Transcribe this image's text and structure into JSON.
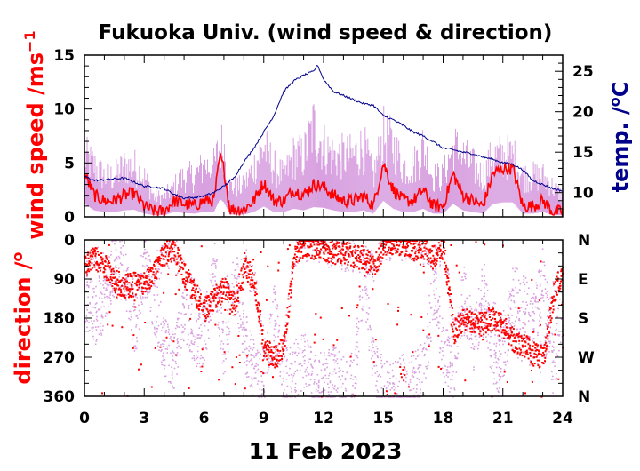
{
  "title": "Fukuoka Univ. (wind speed & direction)",
  "date": "11 Feb 2023",
  "colors": {
    "wind_mean": "#ff0000",
    "wind_gust": "#d8a0e0",
    "temperature": "#00008b",
    "axis": "#000000"
  },
  "chart_data": [
    {
      "type": "line",
      "panel": "top",
      "title": "Fukuoka Univ. (wind speed & direction)",
      "xlim": [
        0,
        24
      ],
      "xticks": [
        "0",
        "3",
        "6",
        "9",
        "12",
        "15",
        "18",
        "21",
        "24"
      ],
      "left_axis": {
        "label": "wind speed /ms",
        "label_superscript": "−1",
        "ylim": [
          0,
          15
        ],
        "ticks": [
          "0",
          "5",
          "10",
          "15"
        ]
      },
      "right_axis": {
        "label": "temp. /",
        "label_superscript": "o",
        "label_unit": "C",
        "ylim": [
          7,
          27
        ],
        "ticks": [
          "10",
          "15",
          "20",
          "25"
        ]
      },
      "series": [
        {
          "role": "wind speed (mean)",
          "x": [
            0,
            0.5,
            1,
            1.5,
            2,
            2.5,
            3,
            3.5,
            4,
            4.5,
            5,
            5.5,
            6,
            6.5,
            6.8,
            7,
            7.3,
            8,
            8.5,
            9,
            9.5,
            10,
            10.5,
            11,
            11.5,
            12,
            12.5,
            13,
            13.5,
            14,
            14.5,
            15,
            15.5,
            16,
            16.5,
            17,
            17.5,
            18,
            18.5,
            19,
            19.5,
            20,
            20.5,
            21,
            21.5,
            22,
            22.5,
            23,
            23.5,
            24
          ],
          "values": [
            4,
            2,
            1.5,
            1.5,
            2,
            2.2,
            1,
            0.5,
            0.5,
            1.5,
            1.2,
            1.0,
            1.5,
            1.5,
            5.5,
            4.5,
            0.7,
            0.7,
            1.5,
            3.2,
            1.5,
            1.5,
            2.5,
            2.0,
            3.0,
            2.8,
            2.0,
            1.5,
            1.5,
            2.0,
            1.0,
            5.0,
            2.5,
            1.5,
            1.5,
            2.5,
            1.0,
            1.0,
            4.0,
            2.0,
            1.5,
            1.0,
            4.0,
            4.5,
            4.5,
            1.0,
            1.0,
            1.5,
            0.5,
            0.5
          ]
        },
        {
          "role": "wind speed (gust)",
          "x": [
            0,
            0.5,
            1,
            1.5,
            2,
            2.5,
            3,
            3.5,
            4,
            4.5,
            5,
            5.5,
            6,
            6.5,
            6.8,
            7,
            7.3,
            8,
            8.5,
            9,
            9.5,
            10,
            10.5,
            11,
            11.5,
            12,
            12.5,
            13,
            13.5,
            14,
            14.5,
            15,
            15.5,
            16,
            16.5,
            17,
            17.5,
            18,
            18.5,
            19,
            19.5,
            20,
            20.5,
            21,
            21.5,
            22,
            22.5,
            23,
            23.5,
            24
          ],
          "values": [
            6,
            5,
            4,
            4,
            5,
            5,
            4,
            2,
            2,
            3,
            4,
            4,
            5,
            5,
            7,
            7,
            3,
            3,
            5,
            7,
            5,
            4,
            6,
            6,
            9,
            7,
            6,
            6,
            6,
            7,
            4,
            8,
            7,
            5,
            5,
            7,
            4,
            4,
            7,
            6,
            5,
            4,
            6,
            6,
            6,
            4,
            4,
            4,
            3,
            2
          ]
        },
        {
          "role": "temperature",
          "axis": "right",
          "x": [
            0,
            0.5,
            1,
            1.5,
            2,
            2.5,
            3,
            3.5,
            4,
            4.5,
            5,
            5.5,
            6,
            6.5,
            7,
            7.5,
            8,
            8.5,
            9,
            9.5,
            10,
            10.5,
            11,
            11.5,
            11.7,
            12,
            12.5,
            13,
            13.5,
            14,
            14.5,
            15,
            15.5,
            16,
            16.5,
            17,
            17.5,
            18,
            18.5,
            19,
            19.5,
            20,
            20.5,
            21,
            21.5,
            22,
            22.5,
            23,
            23.5,
            24
          ],
          "values": [
            12,
            11.5,
            11.6,
            11.7,
            11.8,
            11.3,
            10.8,
            10.7,
            10.5,
            9.8,
            9.3,
            9.4,
            9.6,
            10.0,
            10.8,
            11.8,
            13.8,
            15.5,
            17.5,
            19.5,
            22.5,
            23.8,
            24.5,
            25.0,
            25.8,
            24.0,
            22.5,
            22.0,
            21.5,
            21.0,
            20.8,
            19.5,
            19.0,
            18.3,
            17.5,
            17.0,
            16.3,
            15.5,
            15.3,
            15.0,
            14.8,
            14.4,
            14.1,
            13.7,
            13.5,
            12.8,
            11.5,
            11.0,
            10.5,
            10.2
          ]
        }
      ]
    },
    {
      "type": "scatter",
      "panel": "bottom",
      "xlim": [
        0,
        24
      ],
      "xticks": [
        "0",
        "3",
        "6",
        "9",
        "12",
        "15",
        "18",
        "21",
        "24"
      ],
      "left_axis": {
        "label": "direction /",
        "label_superscript": "o",
        "ylim": [
          0,
          360
        ],
        "inverted": true,
        "ticks": [
          "0",
          "90",
          "180",
          "270",
          "360"
        ]
      },
      "right_axis": {
        "ticks": [
          "N",
          "E",
          "S",
          "W",
          "N"
        ]
      },
      "series": [
        {
          "role": "direction (mean)",
          "x": [
            0,
            0.5,
            1,
            1.5,
            2,
            2.5,
            3,
            3.5,
            4,
            4.5,
            5,
            5.5,
            6,
            6.5,
            7,
            7.5,
            8,
            8.5,
            9,
            9.5,
            10,
            10.5,
            11,
            11.5,
            12,
            12.5,
            13,
            13.5,
            14,
            14.5,
            15,
            15.5,
            16,
            16.5,
            17,
            17.5,
            18,
            18.5,
            19,
            19.5,
            20,
            20.5,
            21,
            21.5,
            22,
            22.5,
            23,
            23.5,
            24
          ],
          "values": [
            60,
            40,
            60,
            95,
            105,
            100,
            95,
            70,
            30,
            20,
            80,
            120,
            160,
            130,
            110,
            150,
            50,
            100,
            250,
            270,
            240,
            30,
            10,
            15,
            20,
            30,
            30,
            35,
            40,
            60,
            10,
            5,
            10,
            20,
            15,
            40,
            20,
            210,
            180,
            195,
            190,
            180,
            200,
            230,
            240,
            260,
            270,
            130,
            60
          ]
        },
        {
          "role": "direction (instantaneous)",
          "x": [
            0,
            0.5,
            1,
            1.5,
            2,
            2.5,
            3,
            3.5,
            4,
            4.5,
            5,
            5.5,
            6,
            6.5,
            7,
            7.5,
            8,
            8.5,
            9,
            9.5,
            10,
            10.5,
            11,
            11.5,
            12,
            12.5,
            13,
            13.5,
            14,
            14.5,
            15,
            15.5,
            16,
            16.5,
            17,
            17.5,
            18,
            18.5,
            19,
            19.5,
            20,
            20.5,
            21,
            21.5,
            22,
            22.5,
            23,
            23.5,
            24
          ],
          "values": [
            120,
            180,
            130,
            40,
            70,
            210,
            40,
            150,
            250,
            280,
            160,
            230,
            220,
            60,
            260,
            60,
            230,
            300,
            310,
            170,
            320,
            300,
            280,
            330,
            320,
            310,
            330,
            320,
            70,
            300,
            340,
            350,
            330,
            330,
            300,
            110,
            250,
            300,
            120,
            240,
            100,
            300,
            260,
            120,
            140,
            200,
            80,
            300,
            150
          ]
        }
      ]
    }
  ]
}
